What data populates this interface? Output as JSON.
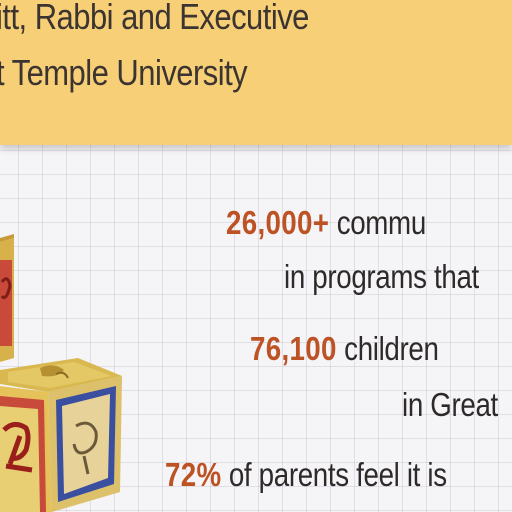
{
  "banner": {
    "line1": "itt, Rabbi and Executive",
    "line2": "t Temple University"
  },
  "stats": [
    {
      "number": "26,000+",
      "text": " commu"
    },
    {
      "number": "",
      "text": "in programs that"
    },
    {
      "number": "76,100",
      "text": " children"
    },
    {
      "number": "",
      "text": "in Great"
    },
    {
      "number": "72%",
      "text": " of parents feel it is"
    }
  ],
  "colors": {
    "banner_bg": "#f7cf77",
    "number_accent": "#bd5224",
    "text": "#2f2a2a"
  }
}
